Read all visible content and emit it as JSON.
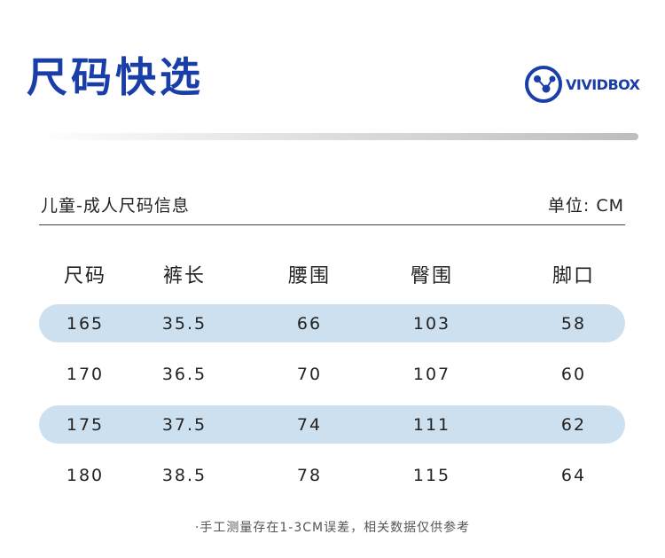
{
  "page": {
    "title": "尺码快选",
    "accent_color": "#1a3ea8",
    "row_shade_color": "#cde0ef"
  },
  "logo": {
    "icon": "vividbox-logo-icon",
    "text": "VIVIDBOX"
  },
  "info": {
    "left": "儿童-成人尺码信息",
    "right": "单位: CM"
  },
  "table": {
    "headers": [
      "尺码",
      "裤长",
      "腰围",
      "臀围",
      "脚口"
    ],
    "rows": [
      [
        "165",
        "35.5",
        "66",
        "103",
        "58"
      ],
      [
        "170",
        "36.5",
        "70",
        "107",
        "60"
      ],
      [
        "175",
        "37.5",
        "74",
        "111",
        "62"
      ],
      [
        "180",
        "38.5",
        "78",
        "115",
        "64"
      ]
    ]
  },
  "footnote": "·手工测量存在1-3CM误差，相关数据仅供参考"
}
